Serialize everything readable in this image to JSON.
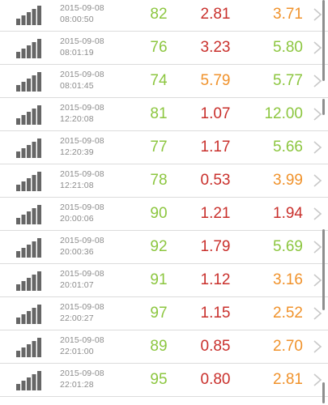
{
  "colors": {
    "col1": "#8cc63f",
    "col2": "#c9302c",
    "col3": "#f0922b",
    "icon": "#666666",
    "chevron": "#c8c8c8"
  },
  "icons": {
    "row_icon": "signal-bars-icon",
    "row_action": "chevron-right-icon"
  },
  "rows": [
    {
      "date": "2015-09-08",
      "time": "08:00:50",
      "v1": "82",
      "v2": "2.81",
      "v3": "3.71",
      "v2_color": "#c9302c",
      "v3_color": "#f0922b"
    },
    {
      "date": "2015-09-08",
      "time": "08:01:19",
      "v1": "76",
      "v2": "3.23",
      "v3": "5.80",
      "v2_color": "#c9302c",
      "v3_color": "#8cc63f"
    },
    {
      "date": "2015-09-08",
      "time": "08:01:45",
      "v1": "74",
      "v2": "5.79",
      "v3": "5.77",
      "v2_color": "#f0922b",
      "v3_color": "#8cc63f"
    },
    {
      "date": "2015-09-08",
      "time": "12:20:08",
      "v1": "81",
      "v2": "1.07",
      "v3": "12.00",
      "v2_color": "#c9302c",
      "v3_color": "#8cc63f"
    },
    {
      "date": "2015-09-08",
      "time": "12:20:39",
      "v1": "77",
      "v2": "1.17",
      "v3": "5.66",
      "v2_color": "#c9302c",
      "v3_color": "#8cc63f"
    },
    {
      "date": "2015-09-08",
      "time": "12:21:08",
      "v1": "78",
      "v2": "0.53",
      "v3": "3.99",
      "v2_color": "#c9302c",
      "v3_color": "#f0922b"
    },
    {
      "date": "2015-09-08",
      "time": "20:00:06",
      "v1": "90",
      "v2": "1.21",
      "v3": "1.94",
      "v2_color": "#c9302c",
      "v3_color": "#c9302c"
    },
    {
      "date": "2015-09-08",
      "time": "20:00:36",
      "v1": "92",
      "v2": "1.79",
      "v3": "5.69",
      "v2_color": "#c9302c",
      "v3_color": "#8cc63f"
    },
    {
      "date": "2015-09-08",
      "time": "20:01:07",
      "v1": "91",
      "v2": "1.12",
      "v3": "3.16",
      "v2_color": "#c9302c",
      "v3_color": "#f0922b"
    },
    {
      "date": "2015-09-08",
      "time": "22:00:27",
      "v1": "97",
      "v2": "1.15",
      "v3": "2.52",
      "v2_color": "#c9302c",
      "v3_color": "#f0922b"
    },
    {
      "date": "2015-09-08",
      "time": "22:01:00",
      "v1": "89",
      "v2": "0.85",
      "v3": "2.70",
      "v2_color": "#c9302c",
      "v3_color": "#f0922b"
    },
    {
      "date": "2015-09-08",
      "time": "22:01:28",
      "v1": "95",
      "v2": "0.80",
      "v3": "2.81",
      "v2_color": "#c9302c",
      "v3_color": "#f0922b"
    }
  ]
}
